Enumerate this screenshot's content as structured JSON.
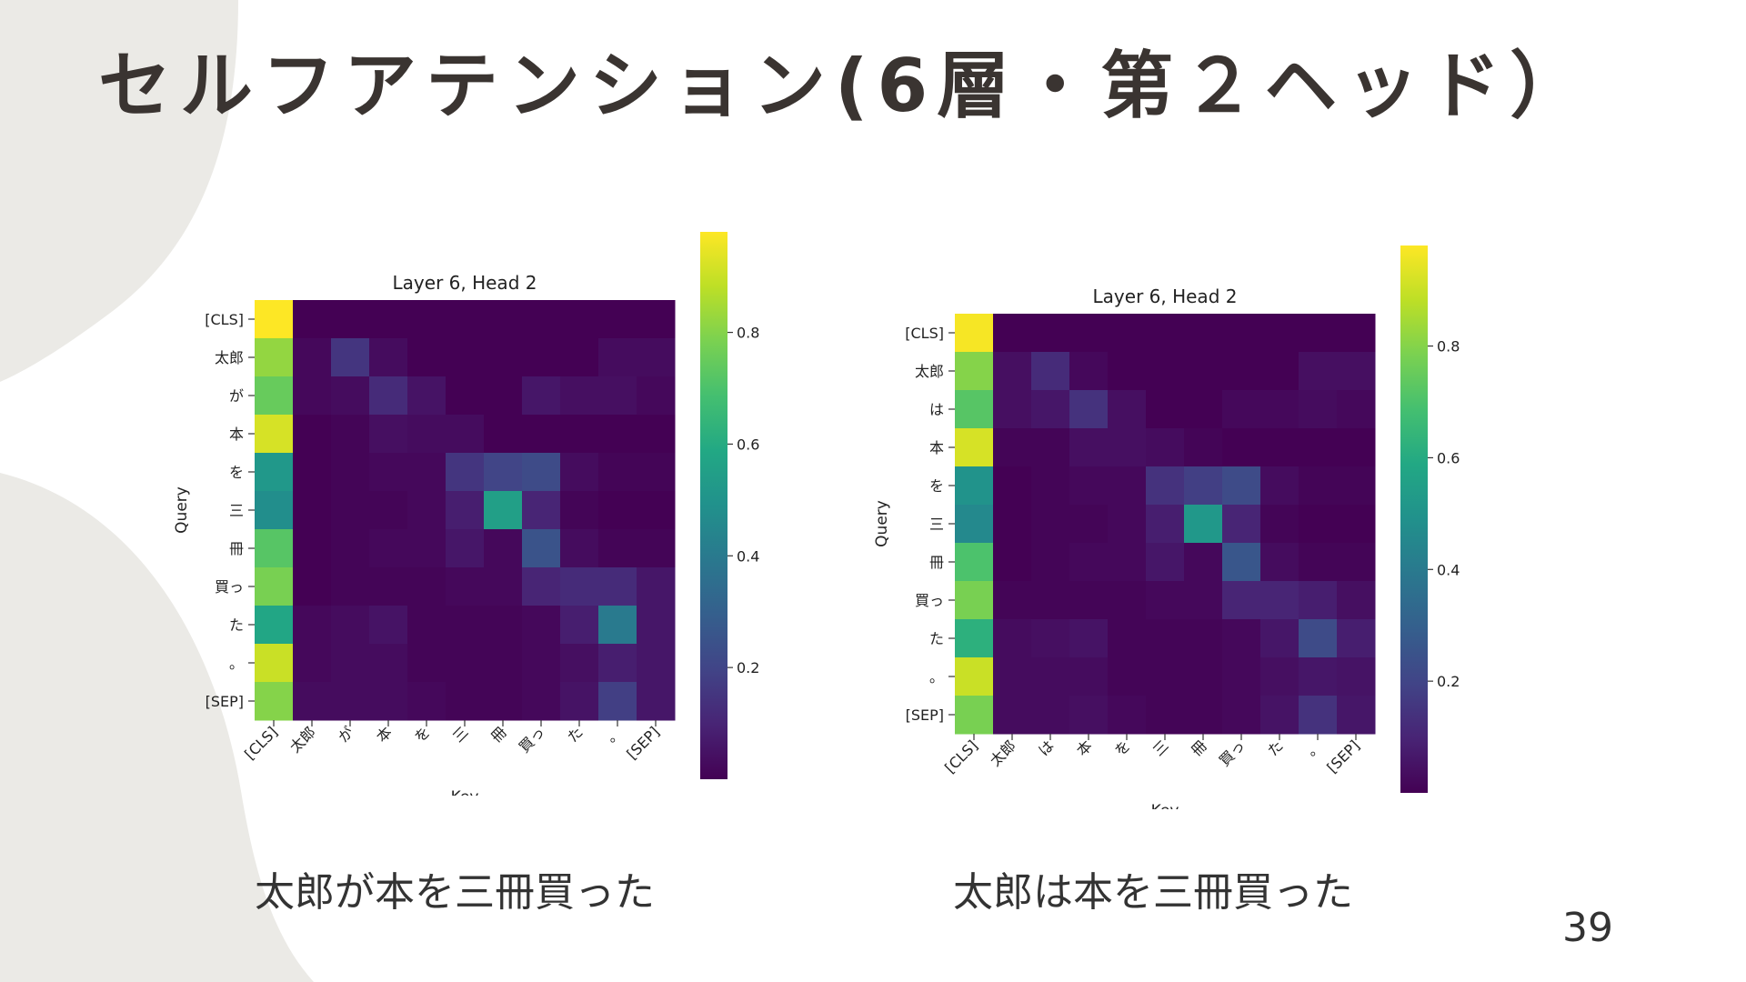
{
  "slide": {
    "title": "セルフアテンション(6層・第２ヘッド）",
    "page_number": "39",
    "captions": [
      "太郎が本を三冊買った",
      "太郎は本を三冊買った"
    ]
  },
  "colors": {
    "background_shape": "#ebeae6",
    "title": "#3a3431",
    "colormap": "viridis"
  },
  "chart_data": [
    {
      "type": "heatmap",
      "title": "Layer 6, Head 2",
      "xlabel": "Key",
      "ylabel": "Query",
      "x_categories": [
        "[CLS]",
        "太郎",
        "が",
        "本",
        "を",
        "三",
        "冊",
        "買っ",
        "た",
        "。",
        "[SEP]"
      ],
      "y_categories": [
        "[CLS]",
        "太郎",
        "が",
        "本",
        "を",
        "三",
        "冊",
        "買っ",
        "た",
        "。",
        "[SEP]"
      ],
      "colorbar": {
        "range": [
          0,
          0.98
        ],
        "ticks": [
          0.2,
          0.4,
          0.6,
          0.8
        ],
        "tick_labels": [
          "0.2",
          "0.4",
          "0.6",
          "0.8"
        ]
      },
      "values": [
        [
          0.98,
          0,
          0,
          0,
          0,
          0,
          0,
          0,
          0,
          0,
          0
        ],
        [
          0.82,
          0.02,
          0.15,
          0.03,
          0,
          0,
          0,
          0,
          0,
          0.03,
          0.03
        ],
        [
          0.75,
          0.02,
          0.03,
          0.12,
          0.05,
          0,
          0,
          0.06,
          0.04,
          0.04,
          0.02
        ],
        [
          0.92,
          0,
          0.01,
          0.04,
          0.03,
          0.03,
          0,
          0,
          0,
          0,
          0
        ],
        [
          0.52,
          0,
          0.01,
          0.02,
          0.02,
          0.15,
          0.2,
          0.22,
          0.03,
          0.01,
          0.01
        ],
        [
          0.48,
          0,
          0.01,
          0.01,
          0.02,
          0.08,
          0.55,
          0.1,
          0.01,
          0,
          0
        ],
        [
          0.72,
          0,
          0.01,
          0.02,
          0.02,
          0.06,
          0.02,
          0.25,
          0.03,
          0.01,
          0.01
        ],
        [
          0.78,
          0,
          0.01,
          0.01,
          0.01,
          0.02,
          0.02,
          0.1,
          0.12,
          0.12,
          0.06
        ],
        [
          0.58,
          0.02,
          0.03,
          0.05,
          0.01,
          0.01,
          0.01,
          0.02,
          0.08,
          0.4,
          0.06
        ],
        [
          0.9,
          0.02,
          0.03,
          0.03,
          0.01,
          0.01,
          0.01,
          0.02,
          0.04,
          0.08,
          0.06
        ],
        [
          0.8,
          0.03,
          0.03,
          0.03,
          0.02,
          0.01,
          0.01,
          0.02,
          0.05,
          0.18,
          0.06
        ]
      ]
    },
    {
      "type": "heatmap",
      "title": "Layer 6, Head 2",
      "xlabel": "Key",
      "ylabel": "Query",
      "x_categories": [
        "[CLS]",
        "太郎",
        "は",
        "本",
        "を",
        "三",
        "冊",
        "買っ",
        "た",
        "。",
        "[SEP]"
      ],
      "y_categories": [
        "[CLS]",
        "太郎",
        "は",
        "本",
        "を",
        "三",
        "冊",
        "買っ",
        "た",
        "。",
        "[SEP]"
      ],
      "colorbar": {
        "range": [
          0,
          0.98
        ],
        "ticks": [
          0.2,
          0.4,
          0.6,
          0.8
        ],
        "tick_labels": [
          "0.2",
          "0.4",
          "0.6",
          "0.8"
        ]
      },
      "values": [
        [
          0.97,
          0,
          0,
          0,
          0,
          0,
          0,
          0,
          0,
          0,
          0
        ],
        [
          0.8,
          0.04,
          0.12,
          0.02,
          0,
          0,
          0,
          0,
          0,
          0.04,
          0.04
        ],
        [
          0.72,
          0.04,
          0.06,
          0.14,
          0.04,
          0,
          0,
          0.02,
          0.02,
          0.03,
          0.02
        ],
        [
          0.92,
          0.01,
          0.01,
          0.04,
          0.04,
          0.03,
          0.01,
          0,
          0,
          0,
          0
        ],
        [
          0.5,
          0,
          0.01,
          0.02,
          0.02,
          0.14,
          0.18,
          0.22,
          0.03,
          0.01,
          0.01
        ],
        [
          0.46,
          0,
          0.01,
          0.01,
          0.02,
          0.08,
          0.52,
          0.1,
          0.01,
          0,
          0
        ],
        [
          0.7,
          0,
          0.01,
          0.02,
          0.02,
          0.06,
          0.02,
          0.26,
          0.03,
          0.01,
          0.01
        ],
        [
          0.78,
          0.01,
          0.01,
          0.01,
          0.01,
          0.02,
          0.02,
          0.1,
          0.1,
          0.08,
          0.04
        ],
        [
          0.62,
          0.03,
          0.04,
          0.05,
          0.01,
          0.01,
          0.01,
          0.02,
          0.06,
          0.22,
          0.08
        ],
        [
          0.9,
          0.03,
          0.03,
          0.03,
          0.01,
          0.01,
          0.01,
          0.02,
          0.04,
          0.06,
          0.05
        ],
        [
          0.78,
          0.03,
          0.03,
          0.04,
          0.02,
          0.01,
          0.01,
          0.02,
          0.05,
          0.14,
          0.06
        ]
      ]
    }
  ]
}
